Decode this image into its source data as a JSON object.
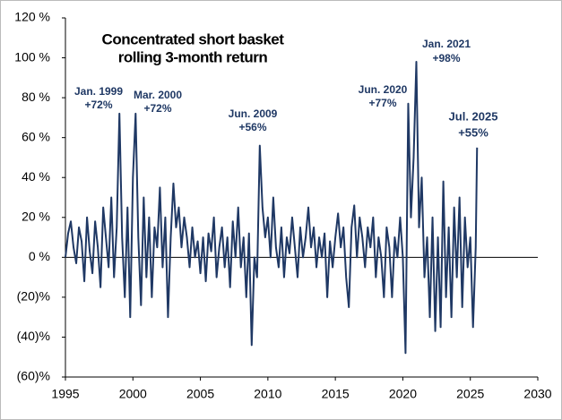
{
  "chart_data": {
    "type": "line",
    "title_lines": [
      "Concentrated short basket",
      "rolling 3-month return"
    ],
    "annotations": [
      {
        "date": "Jan. 1999",
        "value_label": "+72%"
      },
      {
        "date": "Mar. 2000",
        "value_label": "+72%"
      },
      {
        "date": "Jun. 2009",
        "value_label": "+56%"
      },
      {
        "date": "Jun. 2020",
        "value_label": "+77%"
      },
      {
        "date": "Jan. 2021",
        "value_label": "+98%"
      },
      {
        "date": "Jul. 2025",
        "value_label": "+55%"
      }
    ],
    "x": [
      1995.0,
      1995.2,
      1995.4,
      1995.6,
      1995.8,
      1996.0,
      1996.2,
      1996.4,
      1996.6,
      1996.8,
      1997.0,
      1997.2,
      1997.4,
      1997.6,
      1997.8,
      1998.0,
      1998.2,
      1998.4,
      1998.6,
      1998.8,
      1999.0,
      1999.2,
      1999.4,
      1999.6,
      1999.8,
      2000.0,
      2000.2,
      2000.4,
      2000.6,
      2000.8,
      2001.0,
      2001.2,
      2001.4,
      2001.6,
      2001.8,
      2002.0,
      2002.2,
      2002.4,
      2002.6,
      2002.8,
      2003.0,
      2003.2,
      2003.4,
      2003.6,
      2003.8,
      2004.0,
      2004.2,
      2004.4,
      2004.6,
      2004.8,
      2005.0,
      2005.2,
      2005.4,
      2005.6,
      2005.8,
      2006.0,
      2006.2,
      2006.4,
      2006.6,
      2006.8,
      2007.0,
      2007.2,
      2007.4,
      2007.6,
      2007.8,
      2008.0,
      2008.2,
      2008.4,
      2008.6,
      2008.8,
      2009.0,
      2009.2,
      2009.4,
      2009.6,
      2009.8,
      2010.0,
      2010.2,
      2010.4,
      2010.6,
      2010.8,
      2011.0,
      2011.2,
      2011.4,
      2011.6,
      2011.8,
      2012.0,
      2012.2,
      2012.4,
      2012.6,
      2012.8,
      2013.0,
      2013.2,
      2013.4,
      2013.6,
      2013.8,
      2014.0,
      2014.2,
      2014.4,
      2014.6,
      2014.8,
      2015.0,
      2015.2,
      2015.4,
      2015.6,
      2015.8,
      2016.0,
      2016.2,
      2016.4,
      2016.6,
      2016.8,
      2017.0,
      2017.2,
      2017.4,
      2017.6,
      2017.8,
      2018.0,
      2018.2,
      2018.4,
      2018.6,
      2018.8,
      2019.0,
      2019.2,
      2019.4,
      2019.6,
      2019.8,
      2020.0,
      2020.2,
      2020.4,
      2020.6,
      2020.8,
      2021.0,
      2021.2,
      2021.4,
      2021.6,
      2021.8,
      2022.0,
      2022.2,
      2022.4,
      2022.6,
      2022.8,
      2023.0,
      2023.2,
      2023.4,
      2023.6,
      2023.8,
      2024.0,
      2024.2,
      2024.4,
      2024.6,
      2024.8,
      2025.0,
      2025.2,
      2025.4,
      2025.5
    ],
    "series": [
      {
        "color": "#1f3864",
        "values": [
          0,
          12,
          18,
          5,
          -3,
          15,
          8,
          -12,
          20,
          3,
          -8,
          18,
          5,
          -15,
          25,
          10,
          -5,
          30,
          -10,
          15,
          72,
          10,
          -20,
          25,
          -30,
          40,
          72,
          10,
          -24,
          30,
          -10,
          20,
          -20,
          15,
          5,
          35,
          -5,
          20,
          -30,
          10,
          37,
          15,
          25,
          5,
          20,
          10,
          -5,
          15,
          0,
          8,
          -8,
          10,
          -12,
          12,
          3,
          20,
          -10,
          5,
          15,
          -5,
          10,
          -15,
          18,
          0,
          25,
          -5,
          10,
          -20,
          12,
          -44,
          0,
          -10,
          56,
          25,
          10,
          20,
          0,
          30,
          5,
          -5,
          15,
          -10,
          10,
          2,
          20,
          5,
          -10,
          15,
          0,
          10,
          25,
          5,
          15,
          -5,
          10,
          0,
          12,
          -20,
          8,
          -5,
          10,
          22,
          5,
          15,
          -10,
          -25,
          15,
          26,
          0,
          20,
          10,
          -5,
          15,
          5,
          20,
          -10,
          10,
          0,
          -20,
          15,
          5,
          -20,
          10,
          0,
          20,
          0,
          -48,
          77,
          20,
          50,
          98,
          15,
          40,
          -10,
          10,
          -30,
          20,
          -37,
          10,
          -35,
          38,
          -20,
          15,
          -30,
          25,
          -10,
          30,
          -25,
          20,
          -5,
          10,
          -35,
          5,
          55
        ]
      }
    ],
    "xlim": [
      1995,
      2030
    ],
    "xticks": [
      1995,
      2000,
      2005,
      2010,
      2015,
      2020,
      2025,
      2030
    ],
    "ylim": [
      -60,
      120
    ],
    "yticks": [
      {
        "value": -60,
        "label": "(60)%"
      },
      {
        "value": -40,
        "label": "(40)%"
      },
      {
        "value": -20,
        "label": "(20)%"
      },
      {
        "value": 0,
        "label": "0 %"
      },
      {
        "value": 20,
        "label": "20 %"
      },
      {
        "value": 40,
        "label": "40 %"
      },
      {
        "value": 60,
        "label": "60 %"
      },
      {
        "value": 80,
        "label": "80 %"
      },
      {
        "value": 100,
        "label": "100 %"
      },
      {
        "value": 120,
        "label": "120 %"
      }
    ]
  }
}
